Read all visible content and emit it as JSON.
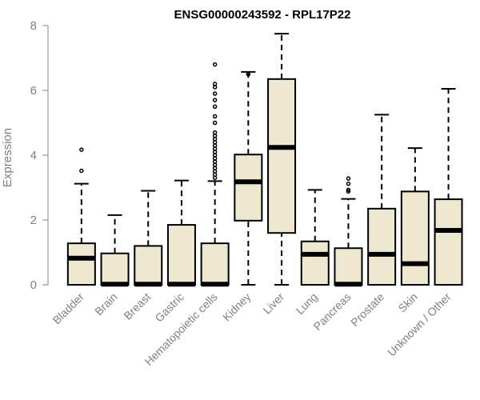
{
  "chart_data": {
    "type": "box",
    "title": "ENSG00000243592 - RPL17P22",
    "xlabel": "",
    "ylabel": "Expression",
    "ylim": [
      0,
      8
    ],
    "yticks": [
      0,
      2,
      4,
      6,
      8
    ],
    "colors": {
      "box_fill": "#EEE8D0",
      "stroke": "#000000",
      "axis": "#808080"
    },
    "categories": [
      "Bladder",
      "Brain",
      "Breast",
      "Gastric",
      "Hematopoietic cells",
      "Kidney",
      "Liver",
      "Lung",
      "Pancreas",
      "Prostate",
      "Skin",
      "Unknown / Other"
    ],
    "boxes": [
      {
        "name": "Bladder",
        "whisker_low": 0,
        "q1": 0,
        "median": 0.82,
        "q3": 1.28,
        "whisker_high": 3.12,
        "outliers": [
          3.52,
          4.17
        ]
      },
      {
        "name": "Brain",
        "whisker_low": 0,
        "q1": 0,
        "median": 0.02,
        "q3": 0.97,
        "whisker_high": 2.15,
        "outliers": []
      },
      {
        "name": "Breast",
        "whisker_low": 0,
        "q1": 0,
        "median": 0.02,
        "q3": 1.2,
        "whisker_high": 2.9,
        "outliers": []
      },
      {
        "name": "Gastric",
        "whisker_low": 0,
        "q1": 0,
        "median": 0.02,
        "q3": 1.85,
        "whisker_high": 3.22,
        "outliers": []
      },
      {
        "name": "Hematopoietic cells",
        "whisker_low": 0,
        "q1": 0,
        "median": 0.02,
        "q3": 1.28,
        "whisker_high": 3.2,
        "outliers": [
          3.3,
          3.4,
          3.5,
          3.6,
          3.7,
          3.8,
          3.9,
          4.0,
          4.1,
          4.2,
          4.3,
          4.4,
          4.5,
          4.6,
          4.7,
          5.0,
          5.2,
          5.5,
          5.7,
          5.9,
          6.1,
          6.2,
          6.8
        ]
      },
      {
        "name": "Kidney",
        "whisker_low": 0,
        "q1": 1.98,
        "median": 3.18,
        "q3": 4.02,
        "whisker_high": 6.57,
        "outliers": [
          6.5
        ]
      },
      {
        "name": "Liver",
        "whisker_low": 0,
        "q1": 1.6,
        "median": 4.24,
        "q3": 6.35,
        "whisker_high": 7.75,
        "outliers": []
      },
      {
        "name": "Lung",
        "whisker_low": 0,
        "q1": 0,
        "median": 0.94,
        "q3": 1.34,
        "whisker_high": 2.93,
        "outliers": []
      },
      {
        "name": "Pancreas",
        "whisker_low": 0,
        "q1": 0,
        "median": 0.02,
        "q3": 1.13,
        "whisker_high": 2.65,
        "outliers": [
          2.88,
          2.93,
          3.12,
          3.28
        ]
      },
      {
        "name": "Prostate",
        "whisker_low": 0,
        "q1": 0,
        "median": 0.94,
        "q3": 2.35,
        "whisker_high": 5.25,
        "outliers": []
      },
      {
        "name": "Skin",
        "whisker_low": 0,
        "q1": 0,
        "median": 0.65,
        "q3": 2.88,
        "whisker_high": 4.22,
        "outliers": []
      },
      {
        "name": "Unknown / Other",
        "whisker_low": 0,
        "q1": 0,
        "median": 1.68,
        "q3": 2.64,
        "whisker_high": 6.05,
        "outliers": []
      }
    ]
  }
}
